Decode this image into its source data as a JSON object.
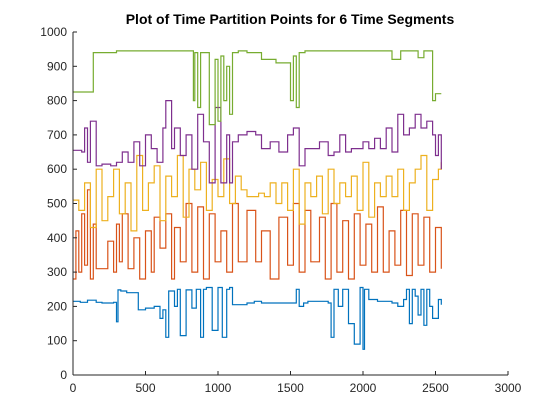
{
  "chart_data": {
    "type": "line",
    "title": "Plot of Time Partition Points for 6 Time Segments",
    "xlabel": "",
    "ylabel": "",
    "xlim": [
      0,
      3000
    ],
    "ylim": [
      0,
      1000
    ],
    "xticks": [
      0,
      500,
      1000,
      1500,
      2000,
      2500,
      3000
    ],
    "yticks": [
      0,
      100,
      200,
      300,
      400,
      500,
      600,
      700,
      800,
      900,
      1000
    ],
    "grid": false,
    "legend": "none",
    "series": [
      {
        "color": "#0072BD",
        "x": [
          0,
          50,
          100,
          160,
          200,
          280,
          300,
          310,
          330,
          370,
          450,
          500,
          560,
          600,
          620,
          640,
          660,
          700,
          720,
          740,
          780,
          820,
          850,
          880,
          900,
          920,
          960,
          1000,
          1030,
          1060,
          1080,
          1100,
          1150,
          1200,
          1250,
          1300,
          1400,
          1500,
          1540,
          1560,
          1590,
          1620,
          1700,
          1760,
          1780,
          1800,
          1830,
          1860,
          1900,
          1940,
          1980,
          2000,
          2010,
          2040,
          2100,
          2160,
          2200,
          2240,
          2280,
          2300,
          2320,
          2340,
          2360,
          2380,
          2400,
          2420,
          2440,
          2460,
          2480,
          2520,
          2540
        ],
        "y": [
          215,
          212,
          218,
          212,
          210,
          212,
          155,
          248,
          245,
          240,
          190,
          195,
          200,
          165,
          190,
          110,
          245,
          200,
          250,
          115,
          248,
          195,
          250,
          110,
          250,
          255,
          130,
          255,
          110,
          250,
          255,
          205,
          205,
          210,
          215,
          210,
          210,
          210,
          250,
          200,
          210,
          215,
          215,
          210,
          110,
          250,
          200,
          250,
          150,
          90,
          255,
          75,
          250,
          220,
          215,
          215,
          210,
          200,
          220,
          250,
          150,
          250,
          230,
          175,
          250,
          145,
          250,
          200,
          165,
          220,
          205
        ]
      },
      {
        "color": "#D95319",
        "x": [
          0,
          20,
          40,
          60,
          80,
          100,
          120,
          140,
          160,
          200,
          240,
          280,
          300,
          320,
          340,
          380,
          420,
          460,
          500,
          540,
          560,
          600,
          640,
          680,
          700,
          740,
          780,
          820,
          860,
          900,
          940,
          980,
          1020,
          1060,
          1100,
          1140,
          1200,
          1260,
          1300,
          1360,
          1420,
          1480,
          1520,
          1560,
          1600,
          1640,
          1700,
          1740,
          1780,
          1820,
          1860,
          1900,
          1940,
          1980,
          2020,
          2060,
          2100,
          2140,
          2180,
          2220,
          2260,
          2300,
          2340,
          2380,
          2420,
          2460,
          2500,
          2540
        ],
        "y": [
          280,
          420,
          300,
          470,
          320,
          540,
          280,
          440,
          310,
          310,
          390,
          300,
          440,
          330,
          470,
          310,
          400,
          280,
          420,
          300,
          460,
          370,
          470,
          280,
          430,
          330,
          500,
          300,
          490,
          280,
          470,
          330,
          420,
          300,
          500,
          330,
          480,
          330,
          420,
          280,
          460,
          320,
          500,
          300,
          480,
          330,
          460,
          280,
          500,
          300,
          450,
          280,
          470,
          320,
          440,
          300,
          490,
          300,
          420,
          320,
          480,
          290,
          470,
          320,
          460,
          300,
          430,
          310
        ]
      },
      {
        "color": "#EDB120",
        "x": [
          0,
          40,
          80,
          120,
          160,
          200,
          240,
          280,
          320,
          360,
          400,
          440,
          480,
          520,
          560,
          600,
          640,
          680,
          720,
          760,
          800,
          840,
          880,
          920,
          960,
          1000,
          1040,
          1080,
          1120,
          1160,
          1200,
          1240,
          1280,
          1320,
          1360,
          1400,
          1440,
          1480,
          1520,
          1560,
          1600,
          1640,
          1680,
          1720,
          1760,
          1800,
          1840,
          1880,
          1920,
          1960,
          2000,
          2040,
          2080,
          2120,
          2160,
          2200,
          2240,
          2280,
          2320,
          2360,
          2400,
          2440,
          2480,
          2520,
          2540
        ],
        "y": [
          510,
          480,
          560,
          430,
          600,
          450,
          520,
          600,
          470,
          560,
          420,
          640,
          480,
          560,
          610,
          450,
          580,
          520,
          640,
          460,
          600,
          540,
          620,
          480,
          570,
          520,
          630,
          500,
          580,
          540,
          520,
          520,
          530,
          520,
          560,
          500,
          560,
          480,
          600,
          440,
          560,
          520,
          580,
          470,
          600,
          500,
          560,
          520,
          580,
          480,
          620,
          460,
          560,
          520,
          580,
          520,
          600,
          480,
          560,
          600,
          640,
          480,
          570,
          600,
          620
        ]
      },
      {
        "color": "#7E2F8E",
        "x": [
          0,
          60,
          80,
          100,
          120,
          160,
          200,
          260,
          300,
          340,
          380,
          420,
          460,
          500,
          540,
          580,
          620,
          640,
          680,
          700,
          740,
          780,
          820,
          860,
          900,
          940,
          980,
          1020,
          1060,
          1080,
          1100,
          1140,
          1200,
          1260,
          1300,
          1360,
          1420,
          1480,
          1520,
          1560,
          1600,
          1640,
          1700,
          1760,
          1800,
          1840,
          1880,
          1920,
          1960,
          2000,
          2040,
          2080,
          2120,
          2160,
          2200,
          2240,
          2280,
          2320,
          2360,
          2400,
          2440,
          2480,
          2500,
          2520,
          2540
        ],
        "y": [
          655,
          650,
          720,
          620,
          740,
          610,
          615,
          610,
          620,
          650,
          620,
          680,
          610,
          700,
          660,
          620,
          720,
          800,
          660,
          720,
          640,
          700,
          600,
          760,
          680,
          560,
          780,
          560,
          700,
          560,
          680,
          700,
          710,
          700,
          660,
          680,
          650,
          700,
          720,
          610,
          660,
          660,
          680,
          640,
          650,
          700,
          650,
          660,
          660,
          680,
          660,
          690,
          660,
          720,
          650,
          760,
          700,
          720,
          760,
          720,
          740,
          700,
          640,
          700,
          600
        ]
      },
      {
        "color": "#77AC30",
        "x": [
          0,
          100,
          140,
          300,
          400,
          500,
          600,
          700,
          800,
          830,
          840,
          860,
          880,
          900,
          940,
          980,
          1000,
          1020,
          1040,
          1060,
          1080,
          1100,
          1140,
          1200,
          1300,
          1400,
          1500,
          1520,
          1540,
          1560,
          1580,
          1600,
          1700,
          1800,
          1900,
          2000,
          2100,
          2140,
          2200,
          2260,
          2300,
          2380,
          2420,
          2460,
          2480,
          2500,
          2540
        ],
        "y": [
          825,
          825,
          940,
          945,
          945,
          945,
          945,
          945,
          945,
          800,
          940,
          780,
          940,
          940,
          730,
          920,
          740,
          930,
          800,
          900,
          760,
          940,
          945,
          940,
          920,
          910,
          800,
          930,
          780,
          940,
          940,
          945,
          945,
          945,
          945,
          945,
          945,
          945,
          920,
          945,
          945,
          925,
          945,
          945,
          800,
          820,
          820
        ]
      }
    ]
  }
}
